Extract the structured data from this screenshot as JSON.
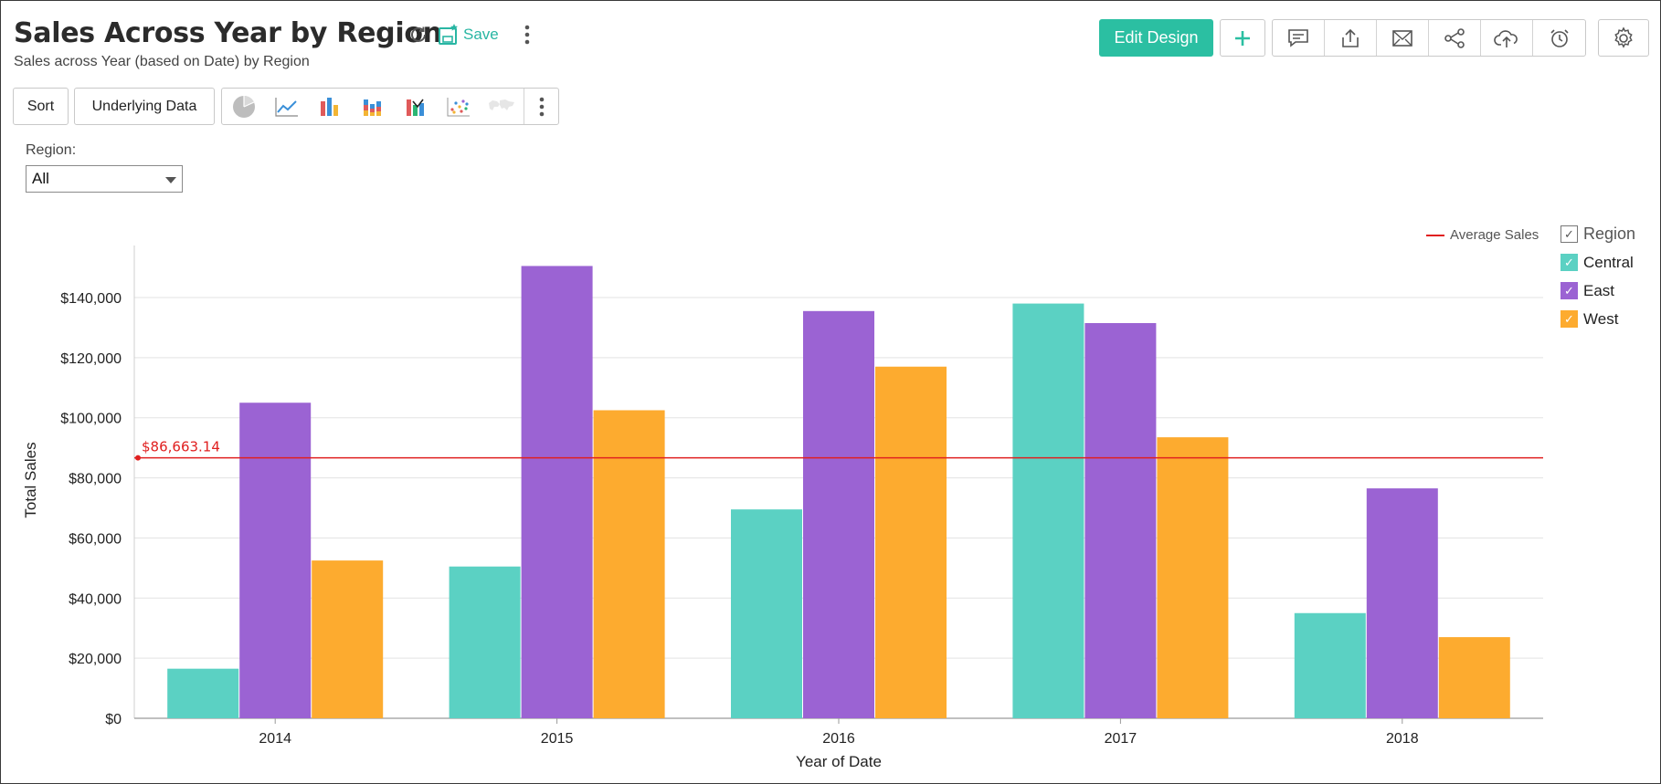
{
  "header": {
    "title": "Sales Across Year by Region",
    "subtitle": "Sales across Year (based on Date) by Region",
    "save_label": "Save"
  },
  "toolbar": {
    "edit_design_label": "Edit Design",
    "sort_label": "Sort",
    "underlying_data_label": "Underlying Data",
    "action_icons": [
      "comment-icon",
      "export-icon",
      "email-icon",
      "share-icon",
      "cloud-upload-icon",
      "alarm-icon"
    ]
  },
  "filter": {
    "label": "Region:",
    "value": "All"
  },
  "colors": {
    "accent": "#2bbfa2",
    "Central": "#5bd1c3",
    "East": "#9b63d3",
    "West": "#fdab2f",
    "average_line": "#e02020"
  },
  "legend": {
    "title": "Region",
    "items": [
      "Central",
      "East",
      "West"
    ],
    "average_label": "Average Sales"
  },
  "chart_data": {
    "type": "bar",
    "categories": [
      "2014",
      "2015",
      "2016",
      "2017",
      "2018"
    ],
    "series": [
      {
        "name": "Central",
        "values": [
          16500,
          50500,
          69500,
          138000,
          35000
        ]
      },
      {
        "name": "East",
        "values": [
          105000,
          150500,
          135500,
          131500,
          76500
        ]
      },
      {
        "name": "West",
        "values": [
          52500,
          102500,
          117000,
          93500,
          27000
        ]
      }
    ],
    "average": {
      "label": "Average Sales",
      "value": 86663.14,
      "display": "$86,663.14"
    },
    "xlabel": "Year of Date",
    "ylabel": "Total Sales",
    "ylim": [
      0,
      160000
    ],
    "yticks": [
      0,
      20000,
      40000,
      60000,
      80000,
      100000,
      120000,
      140000
    ],
    "ytick_labels": [
      "$0",
      "$20,000",
      "$40,000",
      "$60,000",
      "$80,000",
      "$100,000",
      "$120,000",
      "$140,000"
    ],
    "grid": true,
    "legend_position": "right"
  }
}
